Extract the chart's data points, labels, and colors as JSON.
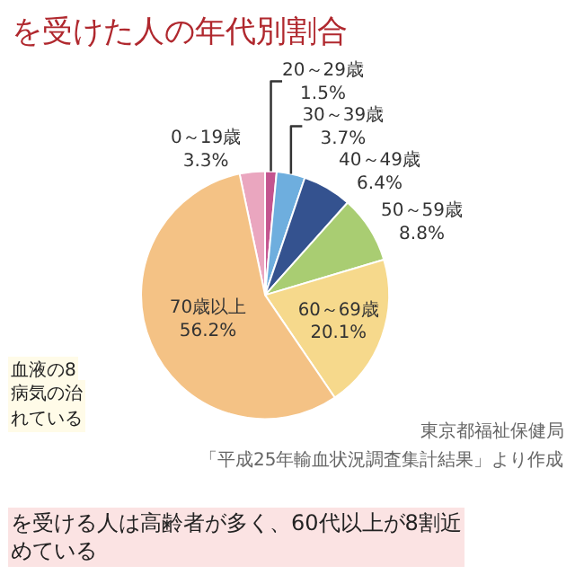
{
  "chart_data": {
    "type": "pie",
    "title": "を受けた人の年代別割合",
    "categories": [
      "0～19歳",
      "20～29歳",
      "30～39歳",
      "40～49歳",
      "50～59歳",
      "60～69歳",
      "70歳以上"
    ],
    "values": [
      3.3,
      1.5,
      3.7,
      6.4,
      8.8,
      20.1,
      56.2
    ],
    "value_labels": [
      "3.3%",
      "1.5%",
      "3.7%",
      "6.4%",
      "8.8%",
      "20.1%",
      "56.2%"
    ],
    "colors": [
      "#eaa6bf",
      "#c4548f",
      "#6eaede",
      "#34528f",
      "#a9cd72",
      "#f6d98c",
      "#f4c285"
    ],
    "legend": false,
    "annotations": [
      "血液の8",
      "病気の治",
      "れている",
      "東京都福祉保健局",
      "「平成25年輸血状況調査集計結果」より作成",
      "を受ける人は高齢者が多く、60代以上が8割近めている"
    ]
  }
}
